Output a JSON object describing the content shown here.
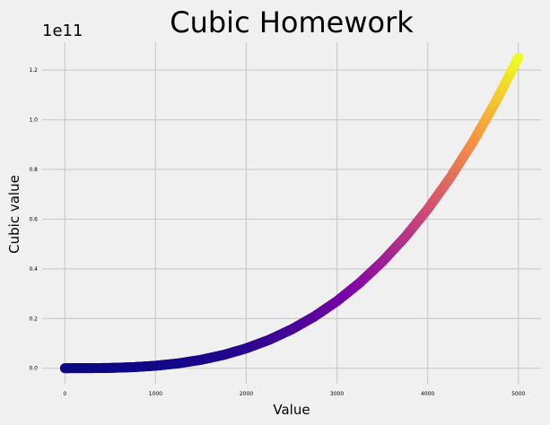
{
  "chart_data": {
    "type": "scatter",
    "title": "Cubic Homework",
    "xlabel": "Value",
    "ylabel": "Cubic value",
    "y_offset_text": "1e11",
    "x_formula": "y = x^3",
    "x_range": [
      1,
      5000
    ],
    "xlim": [
      -250,
      5250
    ],
    "ylim": [
      -0.0625,
      1.3125
    ],
    "x_ticks": [
      0,
      1000,
      2000,
      3000,
      4000,
      5000
    ],
    "x_tick_labels": [
      "0",
      "1000",
      "2000",
      "3000",
      "4000",
      "5000"
    ],
    "y_ticks": [
      0.0,
      0.2,
      0.4,
      0.6,
      0.8,
      1.0,
      1.2
    ],
    "y_tick_labels": [
      "0.0",
      "0.2",
      "0.4",
      "0.6",
      "0.8",
      "1.0",
      "1.2"
    ],
    "colormap": "plasma",
    "background_color": "#f0f0f0",
    "grid": true,
    "style": "fivethirtyeight",
    "series": [
      {
        "x": [
          1,
          250,
          500,
          750,
          1000,
          1250,
          1500,
          1750,
          2000,
          2250,
          2500,
          2750,
          3000,
          3250,
          3500,
          3750,
          4000,
          4250,
          4500,
          4750,
          5000
        ],
        "y": [
          0.0,
          0.0001563,
          0.00125,
          0.004219,
          0.01,
          0.01953,
          0.03375,
          0.05359,
          0.08,
          0.1139,
          0.1563,
          0.208,
          0.27,
          0.3433,
          0.4288,
          0.5273,
          0.64,
          0.7677,
          0.9113,
          1.0717,
          1.25
        ]
      }
    ]
  }
}
